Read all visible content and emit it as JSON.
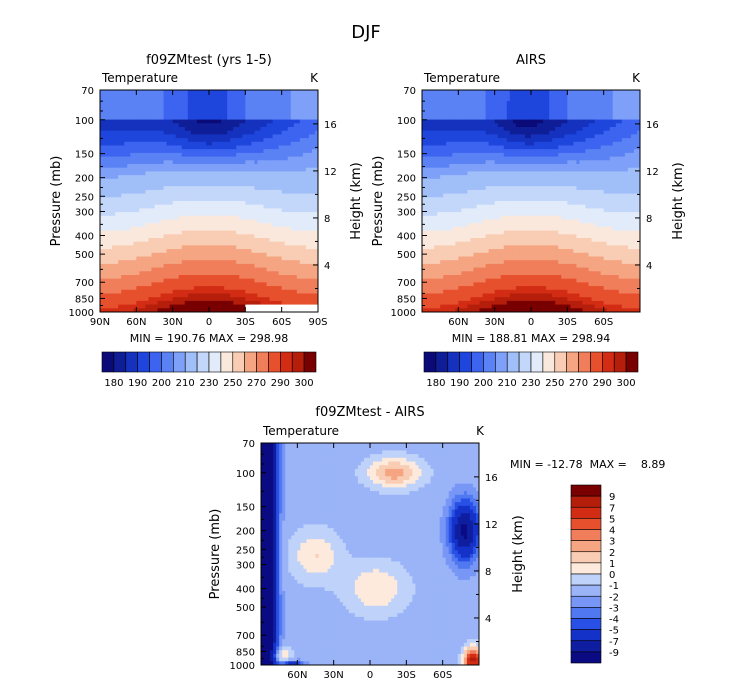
{
  "suptitle": "DJF",
  "colors": {
    "temp_fill": [
      "#0a0a78",
      "#0f1e96",
      "#1432be",
      "#1e46dc",
      "#3c64f0",
      "#5a82f5",
      "#7ea0f8",
      "#a0bef8",
      "#c3d7fa",
      "#e1ebfa",
      "#fbe8dc",
      "#f9cdb4",
      "#f5a582",
      "#f07e5a",
      "#e6502d",
      "#d22d14",
      "#b41e0a",
      "#780000"
    ],
    "diff_fill": [
      "#0a0a82",
      "#0f1ea0",
      "#1432c8",
      "#2850e6",
      "#5078f0",
      "#7896f5",
      "#9bb4f8",
      "#bed2fa",
      "#dce8fa",
      "#fdeadc",
      "#f9cdb4",
      "#f5a582",
      "#f07e5a",
      "#e6502d",
      "#d22d14",
      "#b41e0a",
      "#780000"
    ]
  },
  "chart_data": [
    {
      "type": "heatmap",
      "title": "f09ZMtest (yrs 1-5)",
      "left_label": "Temperature",
      "right_label": "K",
      "ylabel": "Pressure (mb)",
      "y2label": "Height (km)",
      "yticks": [
        "70",
        "100",
        "150",
        "200",
        "250",
        "300",
        "400",
        "500",
        "700",
        "850",
        "1000"
      ],
      "y2ticks": [
        "16",
        "12",
        "8",
        "4"
      ],
      "xticks": [
        "90N",
        "60N",
        "30N",
        "0",
        "30S",
        "60S",
        "90S"
      ],
      "stats": "MIN = 190.76   MAX = 298.98",
      "x_range": [
        90,
        -90
      ],
      "y_range_mb": [
        70,
        1000
      ],
      "y_scale": "log",
      "value_range_K": [
        190.76,
        298.98
      ]
    },
    {
      "type": "heatmap",
      "title": "AIRS",
      "left_label": "Temperature",
      "right_label": "K",
      "ylabel": "Pressure (mb)",
      "y2label": "Height (km)",
      "yticks": [
        "70",
        "100",
        "150",
        "200",
        "250",
        "300",
        "400",
        "500",
        "700",
        "850",
        "1000"
      ],
      "y2ticks": [
        "16",
        "12",
        "8",
        "4"
      ],
      "xticks": [
        "60N",
        "30N",
        "0",
        "30S",
        "60S"
      ],
      "stats": "MIN = 188.81   MAX = 298.94",
      "x_range": [
        90,
        -90
      ],
      "y_range_mb": [
        70,
        1000
      ],
      "y_scale": "log",
      "value_range_K": [
        188.81,
        298.94
      ]
    },
    {
      "type": "heatmap",
      "title": "f09ZMtest - AIRS",
      "left_label": "Temperature",
      "right_label": "K",
      "ylabel": "Pressure (mb)",
      "y2label": "Height (km)",
      "yticks": [
        "70",
        "100",
        "150",
        "200",
        "250",
        "300",
        "400",
        "500",
        "700",
        "850",
        "1000"
      ],
      "y2ticks": [
        "16",
        "12",
        "8",
        "4"
      ],
      "xticks": [
        "60N",
        "30N",
        "0",
        "30S",
        "60S"
      ],
      "stats": "MIN = -12.78  MAX =    8.89",
      "x_range": [
        90,
        -90
      ],
      "y_range_mb": [
        70,
        1000
      ],
      "y_scale": "log",
      "value_range_K": [
        -12.78,
        8.89
      ]
    }
  ],
  "colorbars": {
    "temperature": {
      "orientation": "horizontal",
      "labels": [
        "180",
        "190",
        "200",
        "210",
        "230",
        "250",
        "270",
        "290",
        "300"
      ]
    },
    "difference": {
      "orientation": "vertical",
      "labels": [
        "9",
        "7",
        "5",
        "4",
        "3",
        "2",
        "1",
        "0",
        "-1",
        "-2",
        "-3",
        "-4",
        "-5",
        "-7",
        "-9"
      ]
    }
  }
}
